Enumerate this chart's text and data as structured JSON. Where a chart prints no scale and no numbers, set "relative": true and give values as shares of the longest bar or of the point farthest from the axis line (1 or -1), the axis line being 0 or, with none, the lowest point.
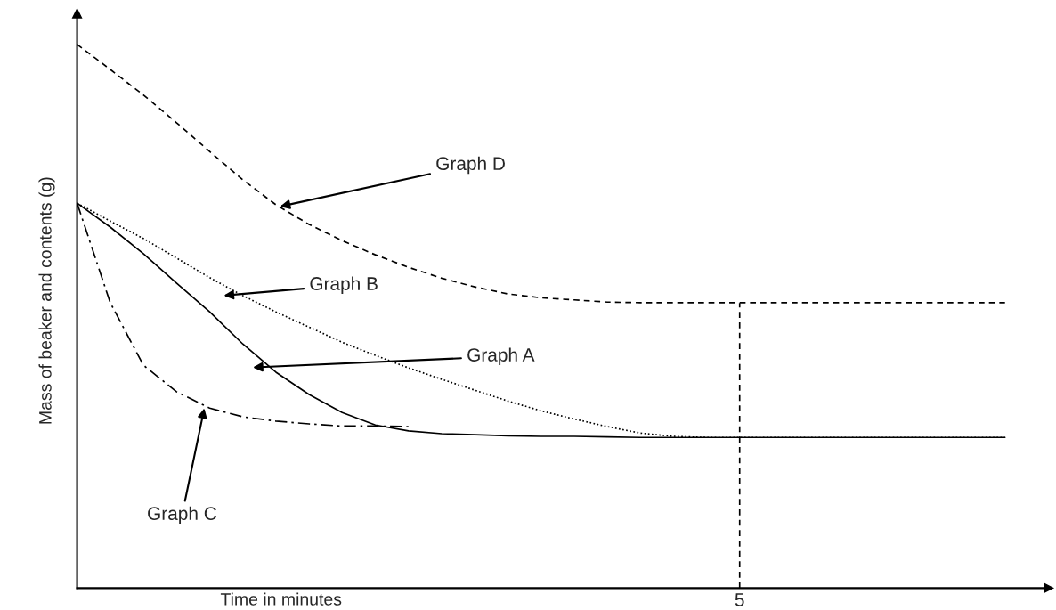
{
  "chart_data": {
    "type": "line",
    "relative": true,
    "xlabel": "Time in minutes",
    "ylabel": "Mass of beaker and contents (g)",
    "legend": false,
    "marker": "none",
    "categories": [
      null,
      null,
      null,
      null,
      null,
      null,
      null,
      null,
      null,
      null,
      null,
      null,
      null,
      null,
      null,
      null,
      null,
      null,
      null,
      null,
      null,
      null,
      null,
      null,
      null,
      null,
      null,
      null,
      null
    ],
    "series": [
      {
        "color": "#000000",
        "line_style": "dashed",
        "values": [
          1.0,
          0.954,
          0.907,
          0.856,
          0.803,
          0.751,
          0.705,
          0.669,
          0.639,
          0.613,
          0.59,
          0.57,
          0.554,
          0.541,
          0.534,
          0.53,
          0.526,
          0.525,
          0.525,
          0.525,
          0.525,
          0.525,
          0.525,
          0.525,
          0.525,
          0.525,
          0.525,
          0.525,
          0.525
        ]
      },
      {
        "color": "#000000",
        "line_style": "dotted",
        "values": [
          0.708,
          0.675,
          0.643,
          0.607,
          0.571,
          0.538,
          0.508,
          0.48,
          0.452,
          0.428,
          0.405,
          0.384,
          0.364,
          0.344,
          0.326,
          0.311,
          0.297,
          0.285,
          0.279,
          0.277,
          0.277,
          0.277,
          0.277,
          0.277,
          0.277,
          0.277,
          0.277,
          0.277,
          0.277
        ]
      },
      {
        "color": "#000000",
        "line_style": "solid",
        "values": [
          0.708,
          0.664,
          0.615,
          0.561,
          0.508,
          0.449,
          0.397,
          0.356,
          0.323,
          0.3,
          0.289,
          0.284,
          0.282,
          0.28,
          0.279,
          0.279,
          0.278,
          0.277,
          0.277,
          0.277,
          0.277,
          0.277,
          0.277,
          0.277,
          0.277,
          0.277,
          0.277,
          0.277,
          0.277
        ]
      },
      {
        "color": "#000000",
        "line_style": "dashdot",
        "values": [
          0.708,
          0.525,
          0.41,
          0.361,
          0.331,
          0.315,
          0.307,
          0.302,
          0.298,
          0.298,
          0.297,
          null,
          null,
          null,
          null,
          null,
          null,
          null,
          null,
          null,
          null,
          null,
          null,
          null,
          null,
          null,
          null,
          null,
          null
        ]
      }
    ],
    "annotations": [
      "Graph D",
      "Graph B",
      "Graph A",
      "Graph C",
      "5"
    ]
  }
}
